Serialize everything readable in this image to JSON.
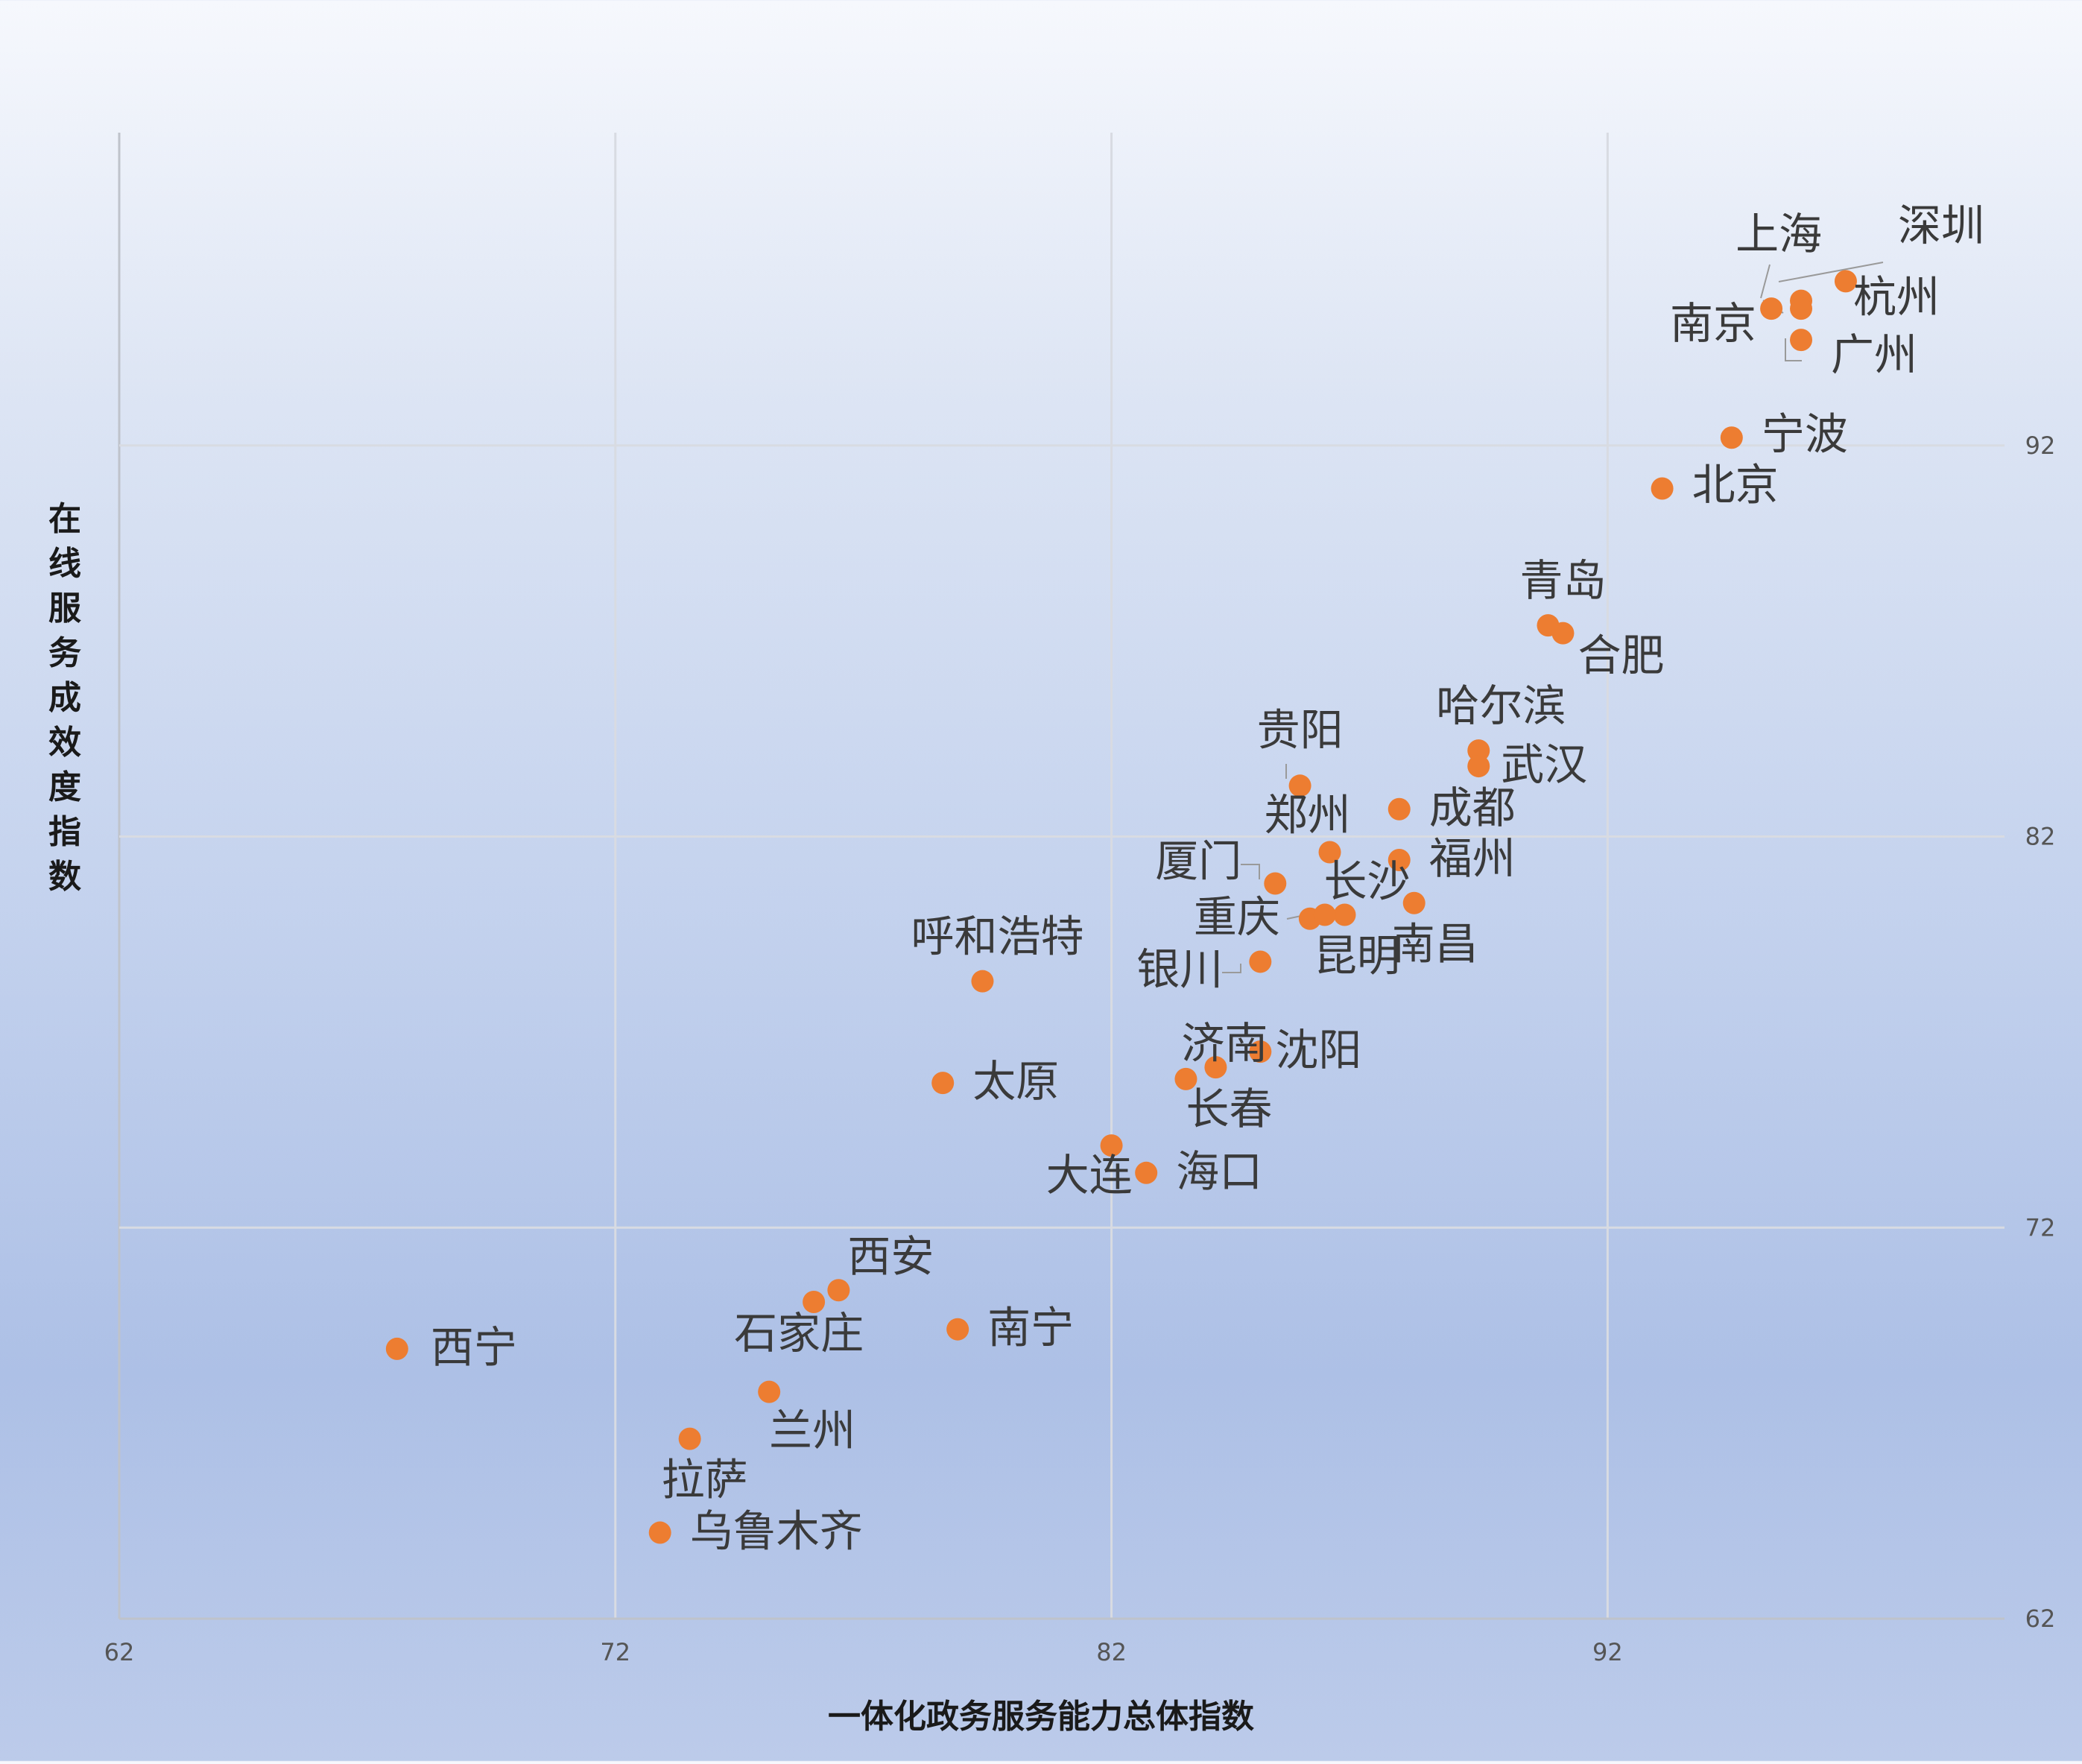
{
  "chart_data": {
    "type": "scatter",
    "xlabel": "一体化政务服务能力总体指数",
    "ylabel": "在线服务成效度指数",
    "xlim": [
      62,
      100
    ],
    "ylim": [
      62,
      100
    ],
    "x_ticks": [
      "62",
      "72",
      "82",
      "92"
    ],
    "y_ticks": [
      "92",
      "82",
      "72",
      "62"
    ],
    "grid": true,
    "legend": "none",
    "point_color": "#ed7d31",
    "points": [
      {
        "label": "深圳",
        "x": 96.8,
        "y": 96.2
      },
      {
        "label": "杭州",
        "x": 95.9,
        "y": 95.7
      },
      {
        "label": "上海",
        "x": 95.3,
        "y": 95.5
      },
      {
        "label": "广州",
        "x": 95.9,
        "y": 94.7
      },
      {
        "label": "南京",
        "x": 95.9,
        "y": 95.5
      },
      {
        "label": "宁波",
        "x": 94.5,
        "y": 92.2
      },
      {
        "label": "北京",
        "x": 93.1,
        "y": 90.9
      },
      {
        "label": "青岛",
        "x": 90.8,
        "y": 87.4
      },
      {
        "label": "合肥",
        "x": 91.1,
        "y": 87.2
      },
      {
        "label": "哈尔滨",
        "x": 89.4,
        "y": 84.2
      },
      {
        "label": "武汉",
        "x": 89.4,
        "y": 83.8
      },
      {
        "label": "贵阳",
        "x": 85.8,
        "y": 83.3
      },
      {
        "label": "成都",
        "x": 87.8,
        "y": 82.7
      },
      {
        "label": "郑州",
        "x": 86.4,
        "y": 81.6
      },
      {
        "label": "福州",
        "x": 87.8,
        "y": 81.4
      },
      {
        "label": "厦门",
        "x": 85.3,
        "y": 80.8
      },
      {
        "label": "长沙",
        "x": 86.7,
        "y": 80.0
      },
      {
        "label": "南昌",
        "x": 88.1,
        "y": 80.3
      },
      {
        "label": "重庆",
        "x": 86.0,
        "y": 79.9
      },
      {
        "label": "昆明",
        "x": 86.3,
        "y": 80.0
      },
      {
        "label": "银川",
        "x": 85.0,
        "y": 78.8
      },
      {
        "label": "呼和浩特",
        "x": 79.4,
        "y": 78.3
      },
      {
        "label": "沈阳",
        "x": 85.0,
        "y": 76.5
      },
      {
        "label": "济南",
        "x": 84.1,
        "y": 76.1
      },
      {
        "label": "长春",
        "x": 83.5,
        "y": 75.8
      },
      {
        "label": "太原",
        "x": 78.6,
        "y": 75.7
      },
      {
        "label": "大连",
        "x": 82.0,
        "y": 74.1
      },
      {
        "label": "海口",
        "x": 82.7,
        "y": 73.4
      },
      {
        "label": "西安",
        "x": 76.5,
        "y": 70.4
      },
      {
        "label": "石家庄",
        "x": 76.0,
        "y": 70.1
      },
      {
        "label": "南宁",
        "x": 78.9,
        "y": 69.4
      },
      {
        "label": "西宁",
        "x": 67.6,
        "y": 68.9
      },
      {
        "label": "兰州",
        "x": 75.1,
        "y": 67.8
      },
      {
        "label": "拉萨",
        "x": 73.5,
        "y": 66.6
      },
      {
        "label": "乌鲁木齐",
        "x": 72.9,
        "y": 64.2
      }
    ]
  }
}
